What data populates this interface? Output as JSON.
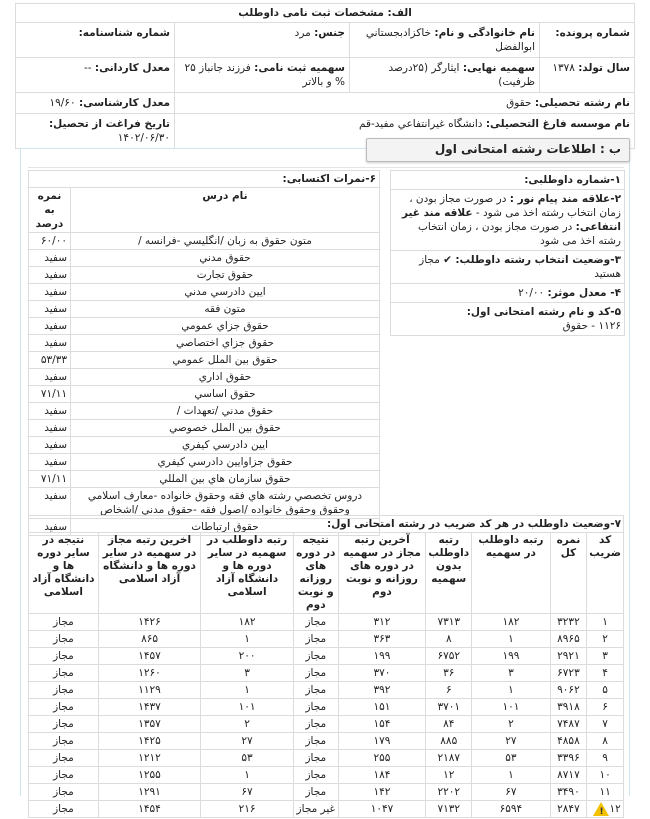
{
  "sectionA": {
    "title": "الف: مشخصات ثبت نامی داوطلب",
    "file_no_label": "شماره پرونده:",
    "file_no": "",
    "name_label": "نام خانوادگی و نام:",
    "name": "خاكزادبجستاني ابوالفضل",
    "gender_label": "جنس:",
    "gender": "مرد",
    "id_no_label": "شماره شناسنامه:",
    "id_no": "",
    "birth_year_label": "سال تولد:",
    "birth_year": "۱۳۷۸",
    "final_quota_label": "سهمیه نهایی:",
    "final_quota": "ایثارگر (۲۵درصد ظرفیت)",
    "reg_quota_label": "سهمیه ثبت نامی:",
    "reg_quota": "فرزند جانباز ۲۵ % و بالاتر",
    "associate_gpa_label": "معدل کاردانی:",
    "associate_gpa": "--",
    "field_label": "نام رشته تحصیلی:",
    "field": "حقوق",
    "bachelor_gpa_label": "معدل کارشناسی:",
    "bachelor_gpa": "۱۹/۶۰",
    "institute_label": "نام موسسه فارغ التحصیلی:",
    "institute": "دانشگاه غيرانتفاعي مفيد-قم",
    "grad_date_label": "تاریخ فراغت از تحصیل:",
    "grad_date": "۱۴۰۲/۰۶/۳۰"
  },
  "sectionB": {
    "tab_title": "ب : اطلاعات رشته امتحانی اول",
    "info": {
      "item1": "۱-شماره داوطلبی:",
      "item2_bold1": "۲-علاقه مند پیام نور :",
      "item2_text1": "در صورت مجاز بودن ، زمان انتخاب رشته اخذ می شود -",
      "item2_bold2": "علاقه مند غیر انتفاعی:",
      "item2_text2": "در صورت مجاز بودن ، زمان انتخاب رشته اخذ می شود",
      "item3_label": "۳-وضعیت انتخاب رشته داوطلب:",
      "item3_value": "مجاز هستید",
      "item4_label": "۴- معدل موثر:",
      "item4_value": "۲۰/۰۰",
      "item5_label": "۵-کد و نام رشته امتحانی اول:",
      "item5_value": "۱۱۲۶ - حقوق"
    },
    "grades": {
      "title": "۶-نمرات اکتسابی:",
      "col_course": "نام درس",
      "col_grade": "نمره به درصد",
      "rows": [
        [
          "متون حقوق به زبان /انگليسي -فرانسه /",
          "۶۰/۰۰"
        ],
        [
          "حقوق مدني",
          "سفید"
        ],
        [
          "حقوق تجارت",
          "سفید"
        ],
        [
          "ايين دادرسي مدني",
          "سفید"
        ],
        [
          "متون فقه",
          "سفید"
        ],
        [
          "حقوق جزاي عمومي",
          "سفید"
        ],
        [
          "حقوق جزاي اختصاصي",
          "سفید"
        ],
        [
          "حقوق بين الملل عمومي",
          "۵۳/۳۳"
        ],
        [
          "حقوق اداري",
          "سفید"
        ],
        [
          "حقوق اساسي",
          "۷۱/۱۱"
        ],
        [
          "حقوق مدني /تعهدات /",
          "سفید"
        ],
        [
          "حقوق بين الملل خصوصي",
          "سفید"
        ],
        [
          "ايين دادرسي كيفري",
          "سفید"
        ],
        [
          "حقوق جزاوايين دادرسي كيفري",
          "سفید"
        ],
        [
          "حقوق سازمان هاي بين المللي",
          "۷۱/۱۱"
        ],
        [
          "دروس تخصصي رشته هاي فقه وحقوق خانواده -معارف اسلامي وحقوق وحقوق خانواده /اصول فقه -حقوق مدني /اشخاص",
          "سفید"
        ],
        [
          "حقوق ارتباطات",
          "سفید"
        ]
      ]
    },
    "status": {
      "title": "۷-وضعیت داوطلب در هر کد ضریب در رشته امتحانی اول:",
      "headers": [
        "کد ضریب",
        "نمره کل",
        "رتبه داوطلب در سهمیه",
        "رتبه داوطلب بدون سهمیه",
        "آخرین رتبه مجاز در سهمیه در دوره های روزانه و نوبت دوم",
        "نتیجه در دوره های روزانه و نوبت دوم",
        "رتبه داوطلب در سهمیه در سایر دوره ها و دانشگاه آزاد اسلامی",
        "اخرین رتبه مجاز در سهمیه در سایر دوره ها و دانشگاه آزاد اسلامی",
        "نتیجه در سایر دوره ها و دانشگاه آزاد اسلامی"
      ],
      "warning_icon": "warning-icon",
      "rows": [
        [
          "۱",
          "۳۲۳۲",
          "۱۸۲",
          "۷۳۱۳",
          "۳۱۲",
          "مجاز",
          "۱۸۲",
          "۱۴۲۶",
          "مجاز"
        ],
        [
          "۲",
          "۸۹۶۵",
          "۱",
          "۸",
          "۳۶۳",
          "مجاز",
          "۱",
          "۸۶۵",
          "مجاز"
        ],
        [
          "۳",
          "۲۹۲۱",
          "۱۹۹",
          "۶۷۵۲",
          "۱۹۹",
          "مجاز",
          "۲۰۰",
          "۱۴۵۷",
          "مجاز"
        ],
        [
          "۴",
          "۶۷۲۳",
          "۳",
          "۳۶",
          "۳۷۰",
          "مجاز",
          "۳",
          "۱۲۶۰",
          "مجاز"
        ],
        [
          "۵",
          "۹۰۶۲",
          "۱",
          "۶",
          "۳۹۲",
          "مجاز",
          "۱",
          "۱۱۲۹",
          "مجاز"
        ],
        [
          "۶",
          "۳۹۱۸",
          "۱۰۱",
          "۳۷۰۱",
          "۱۵۱",
          "مجاز",
          "۱۰۱",
          "۱۴۳۷",
          "مجاز"
        ],
        [
          "۷",
          "۷۴۸۷",
          "۲",
          "۸۴",
          "۱۵۴",
          "مجاز",
          "۲",
          "۱۳۵۷",
          "مجاز"
        ],
        [
          "۸",
          "۴۸۵۸",
          "۲۷",
          "۸۸۵",
          "۱۷۹",
          "مجاز",
          "۲۷",
          "۱۴۲۵",
          "مجاز"
        ],
        [
          "۹",
          "۳۳۹۶",
          "۵۳",
          "۲۱۸۷",
          "۲۵۵",
          "مجاز",
          "۵۳",
          "۱۲۱۲",
          "مجاز"
        ],
        [
          "۱۰",
          "۸۷۱۷",
          "۱",
          "۱۲",
          "۱۸۴",
          "مجاز",
          "۱",
          "۱۲۵۵",
          "مجاز"
        ],
        [
          "۱۱",
          "۳۴۹۰",
          "۶۷",
          "۲۲۰۲",
          "۱۴۲",
          "مجاز",
          "۶۷",
          "۱۲۹۱",
          "مجاز"
        ],
        [
          "۱۲",
          "۲۸۴۷",
          "۶۵۹۴",
          "۷۱۳۲",
          "۱۰۴۷",
          "غیر مجاز",
          "۲۱۶",
          "۱۴۵۴",
          "مجاز"
        ]
      ]
    }
  }
}
